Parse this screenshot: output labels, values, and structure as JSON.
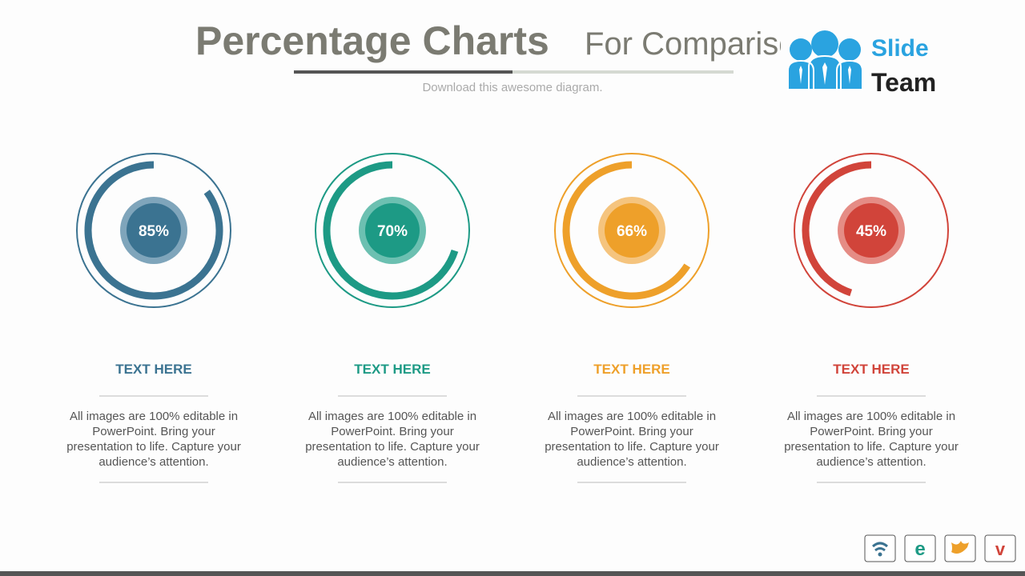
{
  "header": {
    "title": "Percentage Charts",
    "title_rest": "For Comparison",
    "subtitle": "Download this awesome diagram."
  },
  "logo": {
    "line1": "Slide",
    "line2": "Team"
  },
  "chart_data": [
    {
      "type": "donut",
      "values": [
        85
      ],
      "value_labels": [
        "85%"
      ],
      "color": "#3b7391",
      "light": "#7fa5bb",
      "title": "TEXT HERE",
      "description": "All images are 100% editable in PowerPoint. Bring your presentation to life. Capture your audience’s attention."
    },
    {
      "type": "donut",
      "values": [
        70
      ],
      "value_labels": [
        "70%"
      ],
      "color": "#1d9a85",
      "light": "#6cc0b1",
      "title": "TEXT HERE",
      "description": "All images are 100% editable in PowerPoint. Bring your presentation to life. Capture your audience’s attention."
    },
    {
      "type": "donut",
      "values": [
        66
      ],
      "value_labels": [
        "66%"
      ],
      "color": "#eea02a",
      "light": "#f5c47e",
      "title": "TEXT HERE",
      "description": "All images are 100% editable in PowerPoint. Bring your presentation to life. Capture your audience’s attention."
    },
    {
      "type": "donut",
      "values": [
        45
      ],
      "value_labels": [
        "45%"
      ],
      "color": "#d1443a",
      "light": "#e58c85",
      "title": "TEXT HERE",
      "description": "All images are 100% editable in PowerPoint. Bring your presentation to life. Capture your audience’s attention."
    }
  ]
}
